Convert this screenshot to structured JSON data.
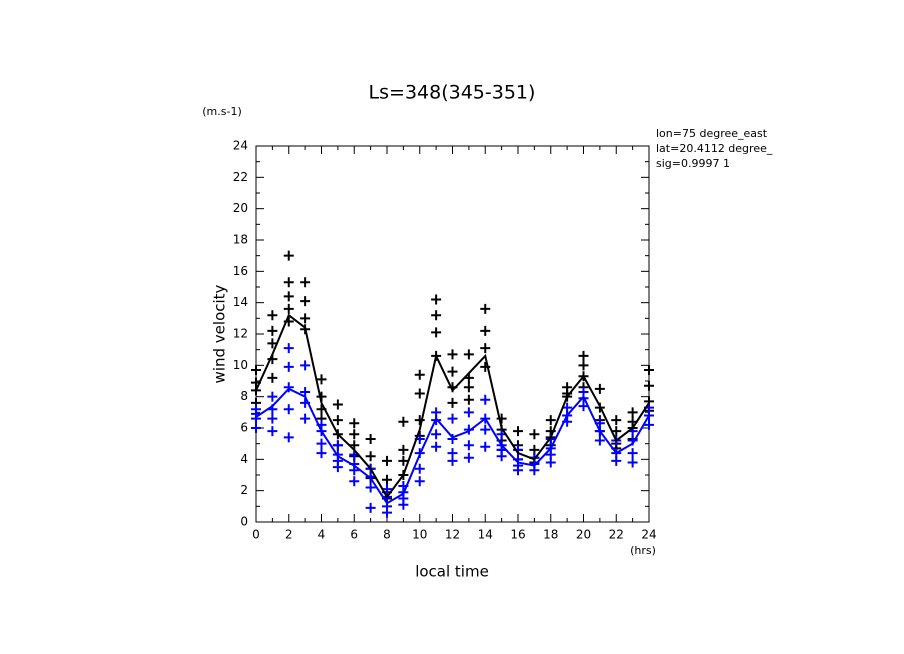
{
  "chart_data": {
    "type": "line",
    "title": "Ls=348(345-351)",
    "y_unit": "(m.s-1)",
    "ylabel": "wind velocity",
    "xlabel": "local time",
    "x_unit": "(hrs)",
    "annotations": [
      "lon=75 degree_east",
      "lat=20.4112 degree_",
      "sig=0.9997 1"
    ],
    "xlim": [
      0,
      24
    ],
    "ylim": [
      0,
      24
    ],
    "xticks": [
      0,
      2,
      4,
      6,
      8,
      10,
      12,
      14,
      16,
      18,
      20,
      22,
      24
    ],
    "yticks": [
      0,
      2,
      4,
      6,
      8,
      10,
      12,
      14,
      16,
      18,
      20,
      22,
      24
    ],
    "xminorticks": [
      1,
      3,
      5,
      7,
      9,
      11,
      13,
      15,
      17,
      19,
      21,
      23
    ],
    "yminorticks": [
      1,
      3,
      5,
      7,
      9,
      11,
      13,
      15,
      17,
      19,
      21,
      23
    ],
    "x": [
      0,
      1,
      2,
      3,
      4,
      5,
      6,
      7,
      8,
      9,
      10,
      11,
      12,
      13,
      14,
      15,
      16,
      17,
      18,
      19,
      20,
      21,
      22,
      23,
      24
    ],
    "series": [
      {
        "type": "line",
        "color": "#000000",
        "values": [
          8.4,
          10.7,
          13.2,
          12.4,
          7.6,
          5.6,
          4.6,
          3.4,
          1.6,
          3.0,
          5.9,
          10.6,
          8.4,
          9.5,
          10.6,
          6.0,
          4.4,
          4.0,
          5.4,
          8.0,
          9.3,
          7.4,
          5.2,
          6.0,
          7.6
        ]
      },
      {
        "type": "line",
        "color": "#0000ff",
        "values": [
          6.7,
          7.4,
          8.5,
          8.0,
          5.8,
          4.2,
          3.6,
          2.8,
          1.2,
          1.8,
          4.3,
          6.6,
          5.4,
          5.8,
          6.6,
          4.9,
          3.8,
          3.6,
          4.7,
          6.8,
          8.0,
          5.8,
          4.4,
          5.0,
          6.8
        ]
      },
      {
        "type": "scatter",
        "color": "#000000",
        "points": [
          {
            "x": 0,
            "values": [
              9.7,
              8.9,
              8.4,
              7.6
            ]
          },
          {
            "x": 1,
            "values": [
              13.2,
              12.2,
              11.4,
              10.4,
              9.2
            ]
          },
          {
            "x": 2,
            "values": [
              17.0,
              15.3,
              14.4,
              13.6,
              12.8
            ]
          },
          {
            "x": 3,
            "values": [
              15.3,
              14.1,
              13.0,
              12.3
            ]
          },
          {
            "x": 4,
            "values": [
              9.1,
              8.0,
              7.2,
              6.6
            ]
          },
          {
            "x": 5,
            "values": [
              7.5,
              6.5,
              5.6,
              4.9
            ]
          },
          {
            "x": 6,
            "values": [
              6.3,
              5.6,
              4.9,
              4.2
            ]
          },
          {
            "x": 7,
            "values": [
              5.3,
              4.2,
              3.4,
              2.8
            ]
          },
          {
            "x": 8,
            "values": [
              3.9,
              2.7,
              1.9,
              1.5
            ]
          },
          {
            "x": 9,
            "values": [
              6.4,
              4.6,
              3.9,
              3.0
            ]
          },
          {
            "x": 10,
            "values": [
              9.4,
              8.2,
              6.5,
              5.5
            ]
          },
          {
            "x": 11,
            "values": [
              14.2,
              13.2,
              12.1,
              10.6
            ]
          },
          {
            "x": 12,
            "values": [
              10.7,
              9.6,
              8.6,
              7.6
            ]
          },
          {
            "x": 13,
            "values": [
              10.7,
              9.2,
              8.6,
              7.8
            ]
          },
          {
            "x": 14,
            "values": [
              13.6,
              12.2,
              11.1,
              9.9
            ]
          },
          {
            "x": 15,
            "values": [
              6.6,
              5.9,
              5.2,
              4.6
            ]
          },
          {
            "x": 16,
            "values": [
              5.8,
              4.9,
              4.6,
              4.0
            ]
          },
          {
            "x": 17,
            "values": [
              5.6,
              4.6,
              4.1,
              3.8
            ]
          },
          {
            "x": 18,
            "values": [
              6.5,
              5.8,
              5.4,
              4.9
            ]
          },
          {
            "x": 19,
            "values": [
              8.6,
              8.2,
              8.0
            ]
          },
          {
            "x": 20,
            "values": [
              10.6,
              10.0,
              9.3,
              8.6
            ]
          },
          {
            "x": 21,
            "values": [
              8.5,
              7.3,
              6.5,
              5.8
            ]
          },
          {
            "x": 22,
            "values": [
              6.5,
              5.8,
              5.0,
              4.7
            ]
          },
          {
            "x": 23,
            "values": [
              7.0,
              6.4,
              6.0,
              5.3
            ]
          },
          {
            "x": 24,
            "values": [
              9.7,
              8.7,
              7.7,
              7.1
            ]
          }
        ]
      },
      {
        "type": "scatter",
        "color": "#0000ff",
        "points": [
          {
            "x": 0,
            "values": [
              7.2,
              6.9,
              6.6,
              6.0
            ]
          },
          {
            "x": 1,
            "values": [
              8.0,
              7.2,
              6.6,
              5.8
            ]
          },
          {
            "x": 2,
            "values": [
              11.1,
              9.9,
              8.6,
              7.2,
              5.4
            ]
          },
          {
            "x": 3,
            "values": [
              10.0,
              8.3,
              7.6,
              6.6
            ]
          },
          {
            "x": 4,
            "values": [
              6.2,
              5.8,
              5.0,
              4.4
            ]
          },
          {
            "x": 5,
            "values": [
              4.9,
              4.3,
              3.9,
              3.5
            ]
          },
          {
            "x": 6,
            "values": [
              4.3,
              3.7,
              3.3,
              2.6
            ]
          },
          {
            "x": 7,
            "values": [
              3.4,
              2.9,
              2.2,
              0.9
            ]
          },
          {
            "x": 8,
            "values": [
              2.1,
              1.6,
              1.0,
              0.6
            ]
          },
          {
            "x": 9,
            "values": [
              2.3,
              1.9,
              1.5,
              1.1
            ]
          },
          {
            "x": 10,
            "values": [
              5.3,
              4.4,
              3.4,
              2.6
            ]
          },
          {
            "x": 11,
            "values": [
              7.0,
              6.5,
              5.6,
              4.8
            ]
          },
          {
            "x": 12,
            "values": [
              6.6,
              5.3,
              4.4,
              3.9
            ]
          },
          {
            "x": 13,
            "values": [
              7.0,
              5.9,
              4.9,
              4.1
            ]
          },
          {
            "x": 14,
            "values": [
              7.8,
              6.6,
              5.9,
              4.8
            ]
          },
          {
            "x": 15,
            "values": [
              5.6,
              4.9,
              4.6,
              4.2
            ]
          },
          {
            "x": 16,
            "values": [
              4.6,
              4.0,
              3.6,
              3.3
            ]
          },
          {
            "x": 17,
            "values": [
              4.1,
              3.7,
              3.3
            ]
          },
          {
            "x": 18,
            "values": [
              5.3,
              4.7,
              4.3,
              3.8
            ]
          },
          {
            "x": 19,
            "values": [
              7.3,
              6.8,
              6.4
            ]
          },
          {
            "x": 20,
            "values": [
              8.3,
              7.9,
              7.4
            ]
          },
          {
            "x": 21,
            "values": [
              6.3,
              5.8,
              5.2
            ]
          },
          {
            "x": 22,
            "values": [
              5.2,
              4.4,
              3.9
            ]
          },
          {
            "x": 23,
            "values": [
              5.8,
              5.2,
              4.4,
              3.8
            ]
          },
          {
            "x": 24,
            "values": [
              7.3,
              6.8,
              6.2
            ]
          }
        ]
      }
    ]
  }
}
